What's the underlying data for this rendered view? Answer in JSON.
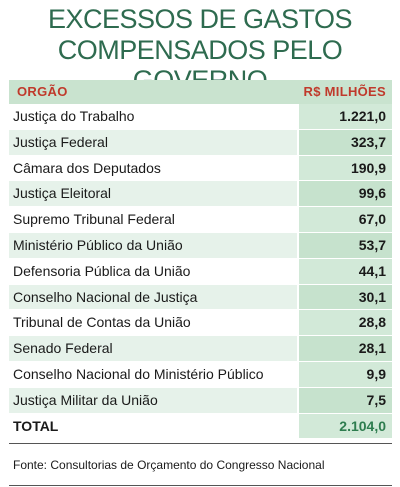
{
  "title": {
    "line1": "EXCESSOS DE GASTOS",
    "line2": "COMPENSADOS PELO GOVERNO"
  },
  "columns": {
    "org": "ORGÃO",
    "value": "R$ MILHÕES"
  },
  "source": "Fonte: Consultorias de Orçamento do Congresso Nacional",
  "colors": {
    "title": "#2e6b4f",
    "header_text": "#c0392b",
    "header_bg": "#c9e3cf",
    "value_bg": "#d2e9d8"
  },
  "chart_data": {
    "type": "table",
    "title": "EXCESSOS DE GASTOS COMPENSADOS PELO GOVERNO",
    "columns": [
      "ORGÃO",
      "R$ MILHÕES"
    ],
    "rows": [
      {
        "label": "Justiça do Trabalho",
        "value_text": "1.221,0",
        "value": 1221.0
      },
      {
        "label": "Justiça Federal",
        "value_text": "323,7",
        "value": 323.7
      },
      {
        "label": "Câmara dos Deputados",
        "value_text": "190,9",
        "value": 190.9
      },
      {
        "label": "Justiça Eleitoral",
        "value_text": "99,6",
        "value": 99.6
      },
      {
        "label": "Supremo Tribunal Federal",
        "value_text": "67,0",
        "value": 67.0
      },
      {
        "label": "Ministério Público da União",
        "value_text": "53,7",
        "value": 53.7
      },
      {
        "label": "Defensoria Pública da União",
        "value_text": "44,1",
        "value": 44.1
      },
      {
        "label": "Conselho Nacional de Justiça",
        "value_text": "30,1",
        "value": 30.1
      },
      {
        "label": "Tribunal de Contas da União",
        "value_text": "28,8",
        "value": 28.8
      },
      {
        "label": "Senado Federal",
        "value_text": "28,1",
        "value": 28.1
      },
      {
        "label": "Conselho Nacional do Ministério Público",
        "value_text": "9,9",
        "value": 9.9
      },
      {
        "label": "Justiça Militar da União",
        "value_text": "7,5",
        "value": 7.5
      }
    ],
    "total": {
      "label": "TOTAL",
      "value_text": "2.104,0",
      "value": 2104.0
    }
  }
}
